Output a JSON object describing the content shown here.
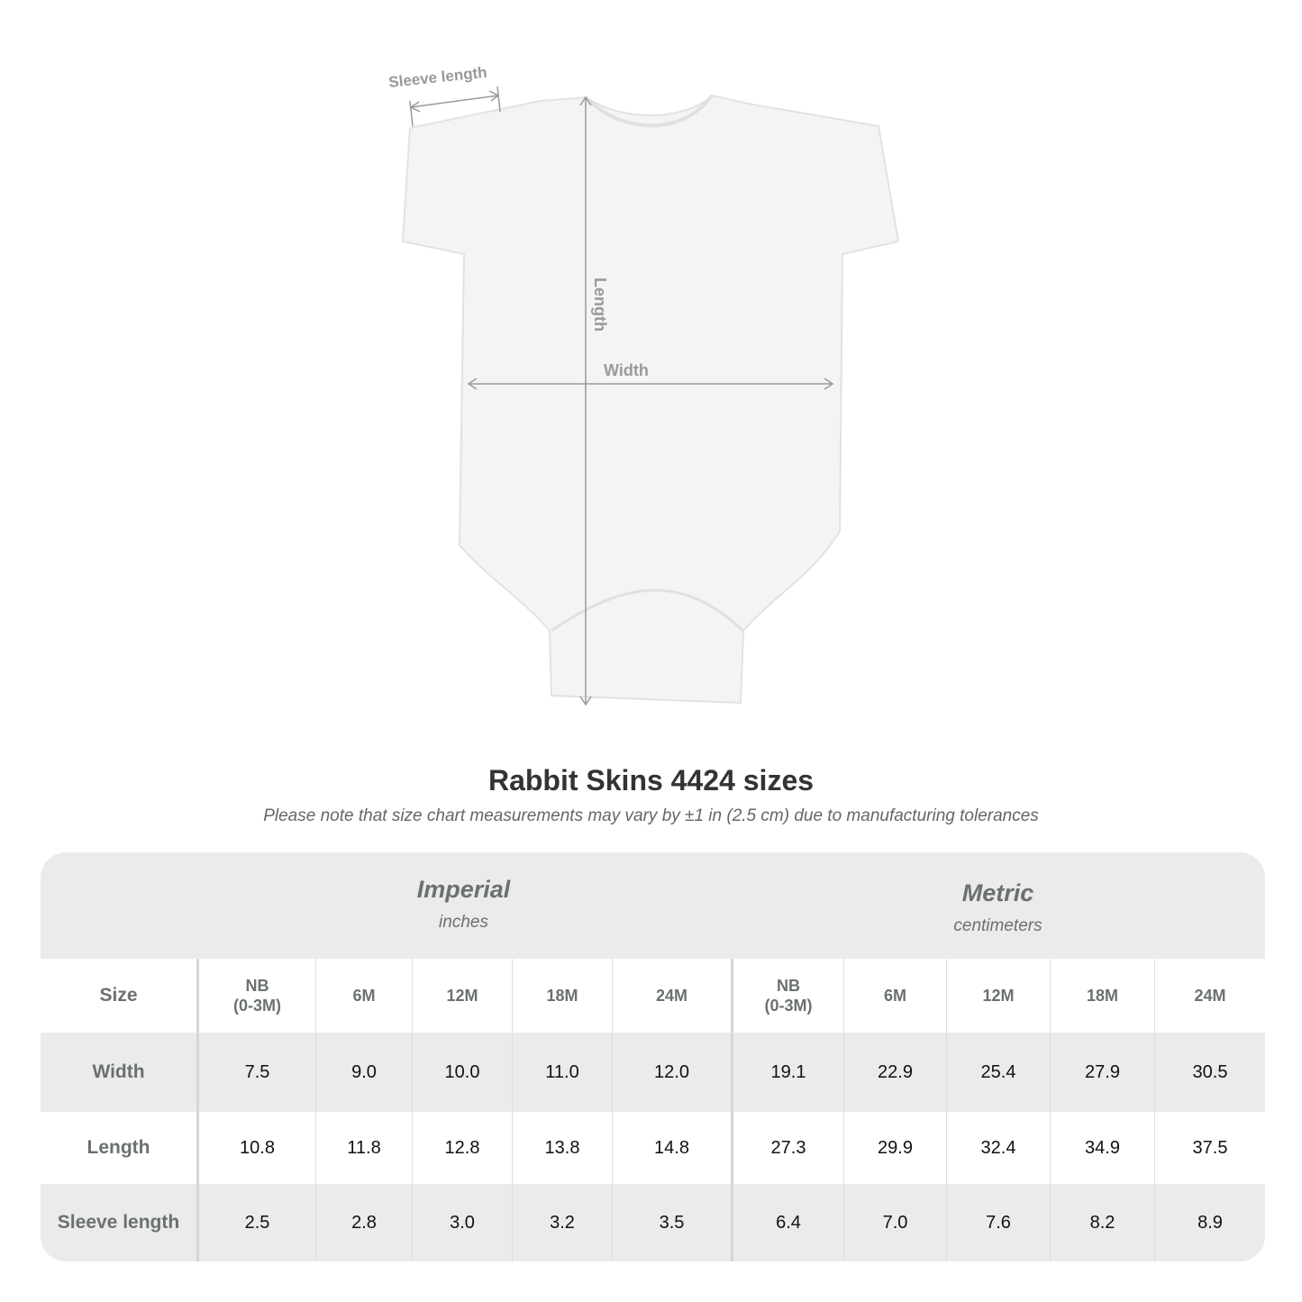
{
  "diagram": {
    "labels": {
      "sleeve": "Sleeve length",
      "length": "Length",
      "width": "Width"
    },
    "garment_color": "#f4f4f4",
    "arrow_color": "#999999"
  },
  "header": {
    "title": "Rabbit Skins 4424 sizes",
    "subtitle": "Please note that size chart measurements may vary by ±1 in (2.5 cm) due to manufacturing tolerances"
  },
  "table": {
    "imperial": {
      "name": "Imperial",
      "unit": "inches"
    },
    "metric": {
      "name": "Metric",
      "unit": "centimeters"
    },
    "size_label": "Size",
    "sizes": [
      "NB\n(0-3M)",
      "6M",
      "12M",
      "18M",
      "24M"
    ],
    "rows": [
      {
        "label": "Width",
        "imperial": [
          "7.5",
          "9.0",
          "10.0",
          "11.0",
          "12.0"
        ],
        "metric": [
          "19.1",
          "22.9",
          "25.4",
          "27.9",
          "30.5"
        ]
      },
      {
        "label": "Length",
        "imperial": [
          "10.8",
          "11.8",
          "12.8",
          "13.8",
          "14.8"
        ],
        "metric": [
          "27.3",
          "29.9",
          "32.4",
          "34.9",
          "37.5"
        ]
      },
      {
        "label": "Sleeve length",
        "imperial": [
          "2.5",
          "2.8",
          "3.0",
          "3.2",
          "3.5"
        ],
        "metric": [
          "6.4",
          "7.0",
          "7.6",
          "8.2",
          "8.9"
        ]
      }
    ],
    "colors": {
      "band": "#ebebeb",
      "label_text": "#6b7072"
    }
  }
}
